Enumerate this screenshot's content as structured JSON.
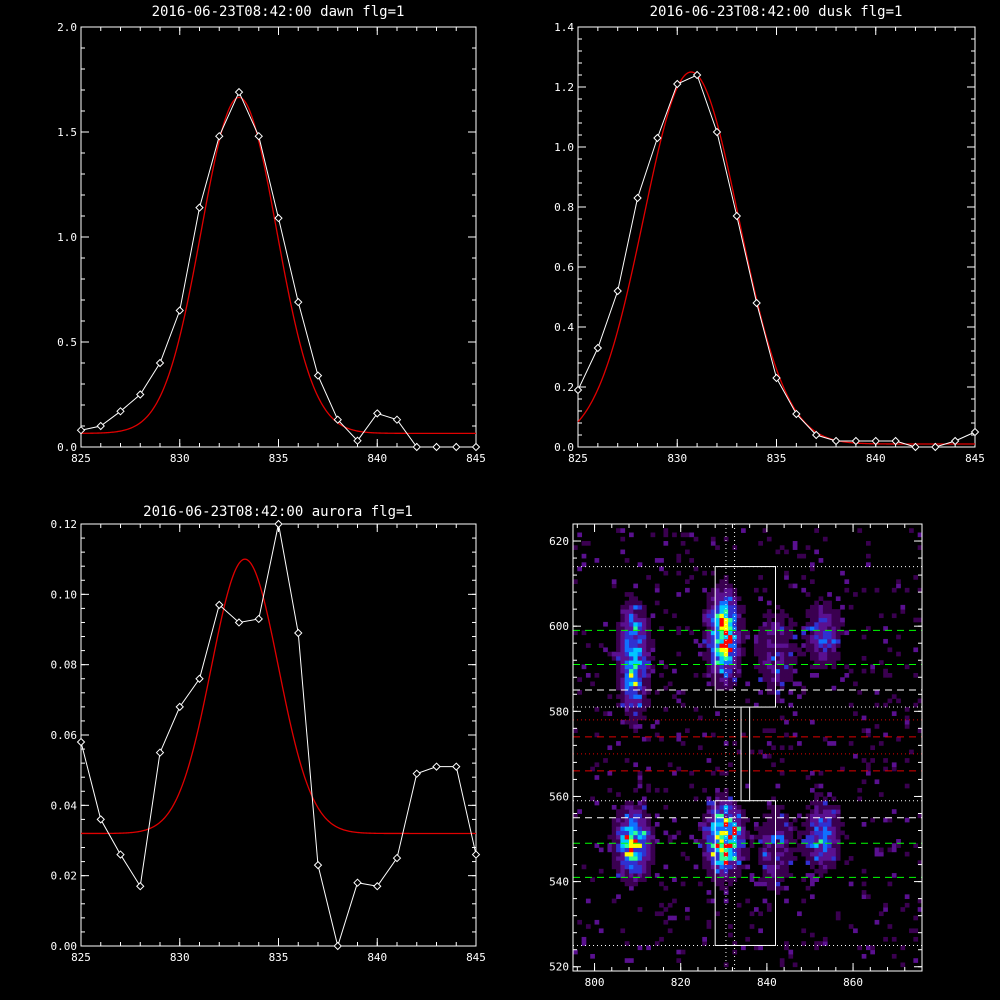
{
  "chart_data": [
    {
      "type": "line",
      "title": "2016-06-23T08:42:00 dawn flg=1",
      "xlim": [
        825,
        845
      ],
      "ylim": [
        0,
        2.0
      ],
      "xticks": [
        "825",
        "830",
        "835",
        "840",
        "845"
      ],
      "yticks": [
        "0.0",
        "0.5",
        "1.0",
        "1.5",
        "2.0"
      ],
      "grid": false,
      "series": [
        {
          "role": "data",
          "color": "#ffffff",
          "marker": "diamond",
          "x": [
            825,
            826,
            827,
            828,
            829,
            830,
            831,
            832,
            833,
            834,
            835,
            836,
            837,
            838,
            839,
            840,
            841,
            842,
            843,
            844,
            845
          ],
          "y": [
            0.08,
            0.1,
            0.17,
            0.25,
            0.4,
            0.65,
            1.14,
            1.48,
            1.69,
            1.48,
            1.09,
            0.69,
            0.34,
            0.13,
            0.03,
            0.16,
            0.13,
            0.0,
            0.0,
            0.0,
            0.0
          ]
        },
        {
          "role": "fit",
          "color": "#e00000",
          "model": "gaussian",
          "amplitude": 1.6,
          "center": 833.0,
          "sigma": 1.9,
          "offset": 0.065
        }
      ]
    },
    {
      "type": "line",
      "title": "2016-06-23T08:42:00 dusk flg=1",
      "xlim": [
        825,
        845
      ],
      "ylim": [
        0,
        1.4
      ],
      "xticks": [
        "825",
        "830",
        "835",
        "840",
        "845"
      ],
      "yticks": [
        "0.0",
        "0.2",
        "0.4",
        "0.6",
        "0.8",
        "1.0",
        "1.2",
        "1.4"
      ],
      "grid": false,
      "series": [
        {
          "role": "data",
          "color": "#ffffff",
          "marker": "diamond",
          "x": [
            825,
            826,
            827,
            828,
            829,
            830,
            831,
            832,
            833,
            834,
            835,
            836,
            837,
            838,
            839,
            840,
            841,
            842,
            843,
            844,
            845
          ],
          "y": [
            0.19,
            0.33,
            0.52,
            0.83,
            1.03,
            1.21,
            1.24,
            1.05,
            0.77,
            0.48,
            0.23,
            0.11,
            0.04,
            0.02,
            0.02,
            0.02,
            0.02,
            0.0,
            0.0,
            0.02,
            0.05
          ]
        },
        {
          "role": "fit",
          "color": "#e00000",
          "model": "gaussian",
          "amplitude": 1.24,
          "center": 830.7,
          "sigma": 2.4,
          "offset": 0.01
        }
      ]
    },
    {
      "type": "line",
      "title": "2016-06-23T08:42:00 aurora flg=1",
      "xlim": [
        825,
        845
      ],
      "ylim": [
        0,
        0.12
      ],
      "xticks": [
        "825",
        "830",
        "835",
        "840",
        "845"
      ],
      "yticks": [
        "0.00",
        "0.02",
        "0.04",
        "0.06",
        "0.08",
        "0.10",
        "0.12"
      ],
      "grid": false,
      "series": [
        {
          "role": "data",
          "color": "#ffffff",
          "marker": "diamond",
          "x": [
            825,
            826,
            827,
            828,
            829,
            830,
            831,
            832,
            833,
            834,
            835,
            836,
            837,
            838,
            839,
            840,
            841,
            842,
            843,
            844,
            845
          ],
          "y": [
            0.058,
            0.036,
            0.026,
            0.017,
            0.055,
            0.068,
            0.076,
            0.097,
            0.092,
            0.093,
            0.12,
            0.089,
            0.023,
            0.0,
            0.018,
            0.017,
            0.025,
            0.049,
            0.051,
            0.051,
            0.026
          ]
        },
        {
          "role": "fit",
          "color": "#e00000",
          "model": "gaussian",
          "amplitude": 0.078,
          "center": 833.3,
          "sigma": 1.7,
          "offset": 0.032
        }
      ]
    },
    {
      "type": "heatmap",
      "title": "",
      "xlim": [
        795,
        876
      ],
      "ylim": [
        519,
        624
      ],
      "xticks": [
        "800",
        "820",
        "840",
        "860"
      ],
      "yticks": [
        "520",
        "540",
        "560",
        "580",
        "600",
        "620"
      ],
      "colormap": [
        "#000000",
        "#3a0050",
        "#5a1090",
        "#3030d0",
        "#1070ff",
        "#00c8ff",
        "#30ff90",
        "#ffff00",
        "#ff0000"
      ],
      "blobs": [
        {
          "x": 830,
          "y": 598,
          "sx": 2.2,
          "sy": 6,
          "peak": 0.95
        },
        {
          "x": 830,
          "y": 550,
          "sx": 2.5,
          "sy": 5,
          "peak": 1.0
        },
        {
          "x": 809,
          "y": 592,
          "sx": 2.2,
          "sy": 8,
          "peak": 0.6
        },
        {
          "x": 809,
          "y": 549,
          "sx": 2.5,
          "sy": 5,
          "peak": 0.75
        },
        {
          "x": 853,
          "y": 598,
          "sx": 2.5,
          "sy": 5,
          "peak": 0.35
        },
        {
          "x": 853,
          "y": 551,
          "sx": 2.5,
          "sy": 5,
          "peak": 0.45
        },
        {
          "x": 842,
          "y": 594,
          "sx": 3,
          "sy": 7,
          "peak": 0.25
        },
        {
          "x": 842,
          "y": 548,
          "sx": 3,
          "sy": 7,
          "peak": 0.25
        }
      ],
      "noise_range": {
        "x": [
          795,
          876
        ],
        "y": [
          520,
          623
        ]
      },
      "boxes": [
        {
          "x": [
            828,
            842
          ],
          "y": [
            581,
            614
          ],
          "color": "#ffffff"
        },
        {
          "x": [
            828,
            842
          ],
          "y": [
            525,
            559
          ],
          "color": "#ffffff"
        },
        {
          "x": [
            834,
            836
          ],
          "y": [
            559,
            581
          ],
          "color": "#ffffff"
        }
      ],
      "vlines_dotted": [
        {
          "x": 830.5,
          "color": "#ffffff"
        },
        {
          "x": 832.5,
          "color": "#ffffff"
        }
      ],
      "hlines": [
        {
          "y": 614,
          "color": "#ffffff",
          "style": "dotted"
        },
        {
          "y": 581,
          "color": "#ffffff",
          "style": "dotted"
        },
        {
          "y": 559,
          "color": "#ffffff",
          "style": "dotted"
        },
        {
          "y": 525,
          "color": "#ffffff",
          "style": "dotted"
        },
        {
          "y": 599,
          "color": "#00ff00",
          "style": "dashed"
        },
        {
          "y": 591,
          "color": "#00ff00",
          "style": "dashed"
        },
        {
          "y": 585,
          "color": "#ffffff",
          "style": "dashed"
        },
        {
          "y": 574,
          "color": "#e00000",
          "style": "dashed"
        },
        {
          "y": 566,
          "color": "#e00000",
          "style": "dashed"
        },
        {
          "y": 555,
          "color": "#ffffff",
          "style": "dashed"
        },
        {
          "y": 549,
          "color": "#00ff00",
          "style": "dashed"
        },
        {
          "y": 541,
          "color": "#00ff00",
          "style": "dashed"
        },
        {
          "y": 570,
          "color": "#e00000",
          "style": "dotted"
        },
        {
          "y": 578,
          "color": "#e00000",
          "style": "dotted"
        }
      ]
    }
  ]
}
